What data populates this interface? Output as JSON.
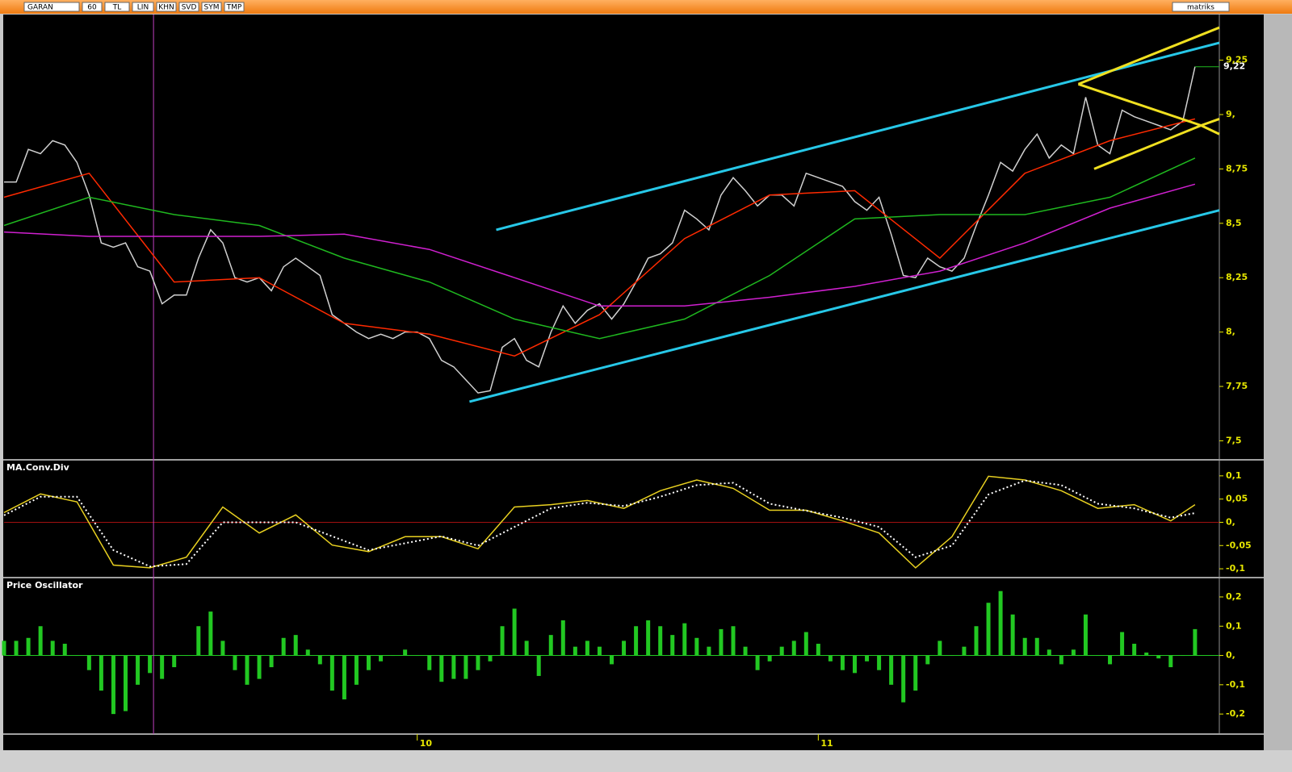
{
  "toolbar": {
    "items": [
      "GARAN",
      "60",
      "TL",
      "LIN",
      "KHN",
      "SVD",
      "SYM",
      "TMP"
    ],
    "brand": "matriks"
  },
  "cursor_x": 12.3,
  "cursor_color": "#c040c0",
  "chart_data": [
    {
      "type": "line",
      "ylim": [
        7.42,
        9.46
      ],
      "yticks": [
        {
          "value": 9.25,
          "label": "9,25"
        },
        {
          "value": 9,
          "label": "9,"
        },
        {
          "value": 8.75,
          "label": "8,75"
        },
        {
          "value": 8.5,
          "label": "8,5"
        },
        {
          "value": 8.25,
          "label": "8,25"
        },
        {
          "value": 8,
          "label": "8,"
        },
        {
          "value": 7.75,
          "label": "7,75"
        },
        {
          "value": 7.5,
          "label": "7,5"
        }
      ],
      "last_value_label": "9,22",
      "series": [
        {
          "color": "#d0d0d0",
          "values": [
            8.69,
            8.69,
            8.84,
            8.82,
            8.88,
            8.86,
            8.78,
            8.63,
            8.41,
            8.39,
            8.41,
            8.3,
            8.28,
            8.13,
            8.17,
            8.17,
            8.34,
            8.47,
            8.41,
            8.25,
            8.23,
            8.25,
            8.19,
            8.3,
            8.34,
            8.3,
            8.26,
            8.08,
            8.04,
            8.0,
            7.97,
            7.99,
            7.97,
            8.0,
            8.0,
            7.97,
            7.87,
            7.84,
            7.78,
            7.72,
            7.73,
            7.93,
            7.97,
            7.87,
            7.84,
            8.0,
            8.12,
            8.04,
            8.1,
            8.13,
            8.06,
            8.13,
            8.23,
            8.34,
            8.36,
            8.41,
            8.56,
            8.52,
            8.47,
            8.63,
            8.71,
            8.65,
            8.58,
            8.63,
            8.63,
            8.58,
            8.73,
            8.71,
            8.69,
            8.67,
            8.6,
            8.56,
            8.62,
            8.45,
            8.26,
            8.25,
            8.34,
            8.3,
            8.28,
            8.34,
            8.49,
            8.63,
            8.78,
            8.74,
            8.84,
            8.91,
            8.8,
            8.86,
            8.82,
            9.08,
            8.86,
            8.82,
            9.02,
            8.99,
            8.97,
            8.95,
            8.93,
            8.97,
            9.22
          ]
        },
        {
          "color": "#ff2a00",
          "x": [
            0,
            7,
            14,
            21,
            28,
            35,
            42,
            49,
            56,
            63,
            70,
            77,
            84,
            91,
            98
          ],
          "values": [
            8.62,
            8.73,
            8.23,
            8.25,
            8.04,
            7.99,
            7.89,
            8.08,
            8.43,
            8.63,
            8.65,
            8.34,
            8.73,
            8.88,
            8.98
          ]
        },
        {
          "color": "#1fb81f",
          "x": [
            0,
            7,
            14,
            21,
            28,
            35,
            42,
            49,
            56,
            63,
            70,
            77,
            84,
            91,
            98
          ],
          "values": [
            8.49,
            8.62,
            8.54,
            8.49,
            8.34,
            8.23,
            8.06,
            7.97,
            8.06,
            8.26,
            8.52,
            8.54,
            8.54,
            8.62,
            8.8
          ]
        },
        {
          "color": "#d020d0",
          "x": [
            0,
            7,
            14,
            21,
            28,
            35,
            42,
            49,
            56,
            63,
            70,
            77,
            84,
            91,
            98
          ],
          "values": [
            8.46,
            8.44,
            8.44,
            8.44,
            8.45,
            8.38,
            8.25,
            8.12,
            8.12,
            8.16,
            8.21,
            8.28,
            8.41,
            8.57,
            8.68
          ]
        }
      ],
      "trendlines": [
        {
          "color": "#27c8e8",
          "x": [
            40.5,
            100
          ],
          "y": [
            8.47,
            9.33
          ]
        },
        {
          "color": "#27c8e8",
          "x": [
            38.3,
            100
          ],
          "y": [
            7.68,
            8.56
          ]
        },
        {
          "color": "#f0e020",
          "x": [
            88.4,
            100
          ],
          "y": [
            9.14,
            9.4
          ]
        },
        {
          "color": "#f0e020",
          "x": [
            88.4,
            98.5
          ],
          "y": [
            9.14,
            8.95
          ]
        },
        {
          "color": "#f0e020",
          "x": [
            89.7,
            98.5
          ],
          "y": [
            8.75,
            8.95
          ]
        },
        {
          "color": "#f0e020",
          "x": [
            98.5,
            100
          ],
          "y": [
            8.95,
            8.91
          ]
        },
        {
          "color": "#f0e020",
          "x": [
            98.5,
            100
          ],
          "y": [
            8.95,
            8.98
          ]
        }
      ]
    },
    {
      "type": "line",
      "title": "MA.Conv.Div",
      "ylim": [
        -0.112,
        0.131
      ],
      "yticks": [
        {
          "value": 0.1,
          "label": "0,1"
        },
        {
          "value": 0.05,
          "label": "0,05"
        },
        {
          "value": 0,
          "label": "0,"
        },
        {
          "value": -0.05,
          "label": "-0,05"
        },
        {
          "value": -0.1,
          "label": "-0,1"
        }
      ],
      "zero_line_color": "#a01010",
      "x": [
        0,
        3,
        6,
        9,
        12,
        15,
        18,
        21,
        24,
        27,
        30,
        33,
        36,
        39,
        42,
        45,
        48,
        51,
        54,
        57,
        60,
        63,
        66,
        69,
        72,
        75,
        78,
        81,
        84,
        87,
        90,
        93,
        96,
        98
      ],
      "series": [
        {
          "color": "#e8d020",
          "values": [
            0.021,
            0.061,
            0.044,
            -0.092,
            -0.098,
            -0.075,
            0.033,
            -0.023,
            0.016,
            -0.049,
            -0.063,
            -0.031,
            -0.031,
            -0.057,
            0.033,
            0.038,
            0.047,
            0.03,
            0.068,
            0.091,
            0.073,
            0.026,
            0.026,
            0.003,
            -0.023,
            -0.098,
            -0.031,
            0.099,
            0.091,
            0.068,
            0.03,
            0.038,
            0.003,
            0.038
          ]
        },
        {
          "color": "#ffffff",
          "dotted": true,
          "values": [
            0.015,
            0.055,
            0.055,
            -0.06,
            -0.095,
            -0.09,
            0.0,
            0.0,
            0.0,
            -0.03,
            -0.06,
            -0.045,
            -0.03,
            -0.05,
            -0.01,
            0.03,
            0.042,
            0.035,
            0.055,
            0.08,
            0.085,
            0.04,
            0.025,
            0.01,
            -0.01,
            -0.075,
            -0.05,
            0.06,
            0.09,
            0.08,
            0.04,
            0.03,
            0.01,
            0.02
          ]
        }
      ]
    },
    {
      "type": "bar",
      "title": "Price Oscillator",
      "ylim": [
        -0.263,
        0.255
      ],
      "yticks": [
        {
          "value": 0.2,
          "label": "0,2"
        },
        {
          "value": 0.1,
          "label": "0,1"
        },
        {
          "value": 0,
          "label": "0,"
        },
        {
          "value": -0.1,
          "label": "-0,1"
        },
        {
          "value": -0.2,
          "label": "-0,2"
        }
      ],
      "color": "#22c822",
      "zero_line_color": "#22c822",
      "xlim": [
        0,
        100
      ],
      "xticks": [
        {
          "value": 34,
          "label": "10"
        },
        {
          "value": 67,
          "label": "11"
        }
      ],
      "values": [
        0.05,
        0.05,
        0.06,
        0.1,
        0.05,
        0.04,
        0.0,
        -0.05,
        -0.12,
        -0.2,
        -0.19,
        -0.1,
        -0.06,
        -0.08,
        -0.04,
        0.0,
        0.1,
        0.15,
        0.05,
        -0.05,
        -0.1,
        -0.08,
        -0.04,
        0.06,
        0.07,
        0.02,
        -0.03,
        -0.12,
        -0.15,
        -0.1,
        -0.05,
        -0.02,
        0.0,
        0.02,
        0.0,
        -0.05,
        -0.09,
        -0.08,
        -0.08,
        -0.05,
        -0.02,
        0.1,
        0.16,
        0.05,
        -0.07,
        0.07,
        0.12,
        0.03,
        0.05,
        0.03,
        -0.03,
        0.05,
        0.1,
        0.12,
        0.1,
        0.07,
        0.11,
        0.06,
        0.03,
        0.09,
        0.1,
        0.03,
        -0.05,
        -0.02,
        0.03,
        0.05,
        0.08,
        0.04,
        -0.02,
        -0.05,
        -0.06,
        -0.02,
        -0.05,
        -0.1,
        -0.16,
        -0.12,
        -0.03,
        0.05,
        0.0,
        0.03,
        0.1,
        0.18,
        0.22,
        0.14,
        0.06,
        0.06,
        0.02,
        -0.03,
        0.02,
        0.14,
        0.0,
        -0.03,
        0.08,
        0.04,
        0.01,
        -0.01,
        -0.04,
        0.0,
        0.09
      ]
    }
  ]
}
